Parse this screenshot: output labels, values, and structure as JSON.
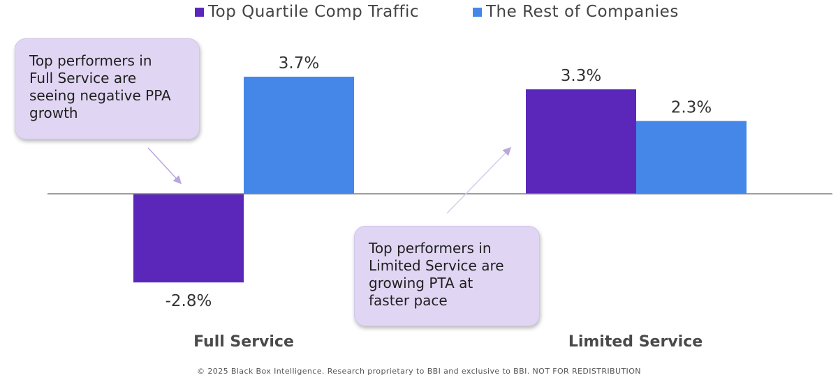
{
  "chart_data": {
    "type": "bar",
    "categories": [
      "Full Service",
      "Limited Service"
    ],
    "series": [
      {
        "name": "Top Quartile Comp Traffic",
        "color": "#5b27bb",
        "values": [
          -2.8,
          3.3
        ],
        "labels": [
          "-2.8%",
          "3.3%"
        ]
      },
      {
        "name": "The Rest of Companies",
        "color": "#4587e8",
        "values": [
          3.7,
          2.3
        ],
        "labels": [
          "3.7%",
          "2.3%"
        ]
      }
    ],
    "title": "",
    "xlabel": "",
    "ylabel": "",
    "legend_position": "top",
    "grid": false,
    "annotations": [
      "Top performers in Full Service are seeing negative PPA growth",
      "Top performers in Limited Service are growing PTA at faster pace"
    ]
  },
  "legend": {
    "series_1": "Top Quartile Comp Traffic",
    "series_2": "The Rest of Companies"
  },
  "callouts": {
    "full_service": {
      "lines": [
        "Top performers in",
        "Full Service are",
        "seeing negative PPA",
        "growth"
      ]
    },
    "limited_service": {
      "lines": [
        "Top performers in",
        "Limited Service are",
        "growing PTA at",
        "faster pace"
      ]
    }
  },
  "footer": "© 2025 Black Box Intelligence. Research proprietary to BBI and exclusive to BBI. NOT FOR REDISTRIBUTION",
  "colors": {
    "series_1": "#5b27bb",
    "series_2": "#4587e8",
    "callout_bg": "#e0d6f3",
    "axis": "#7f7f7f"
  }
}
